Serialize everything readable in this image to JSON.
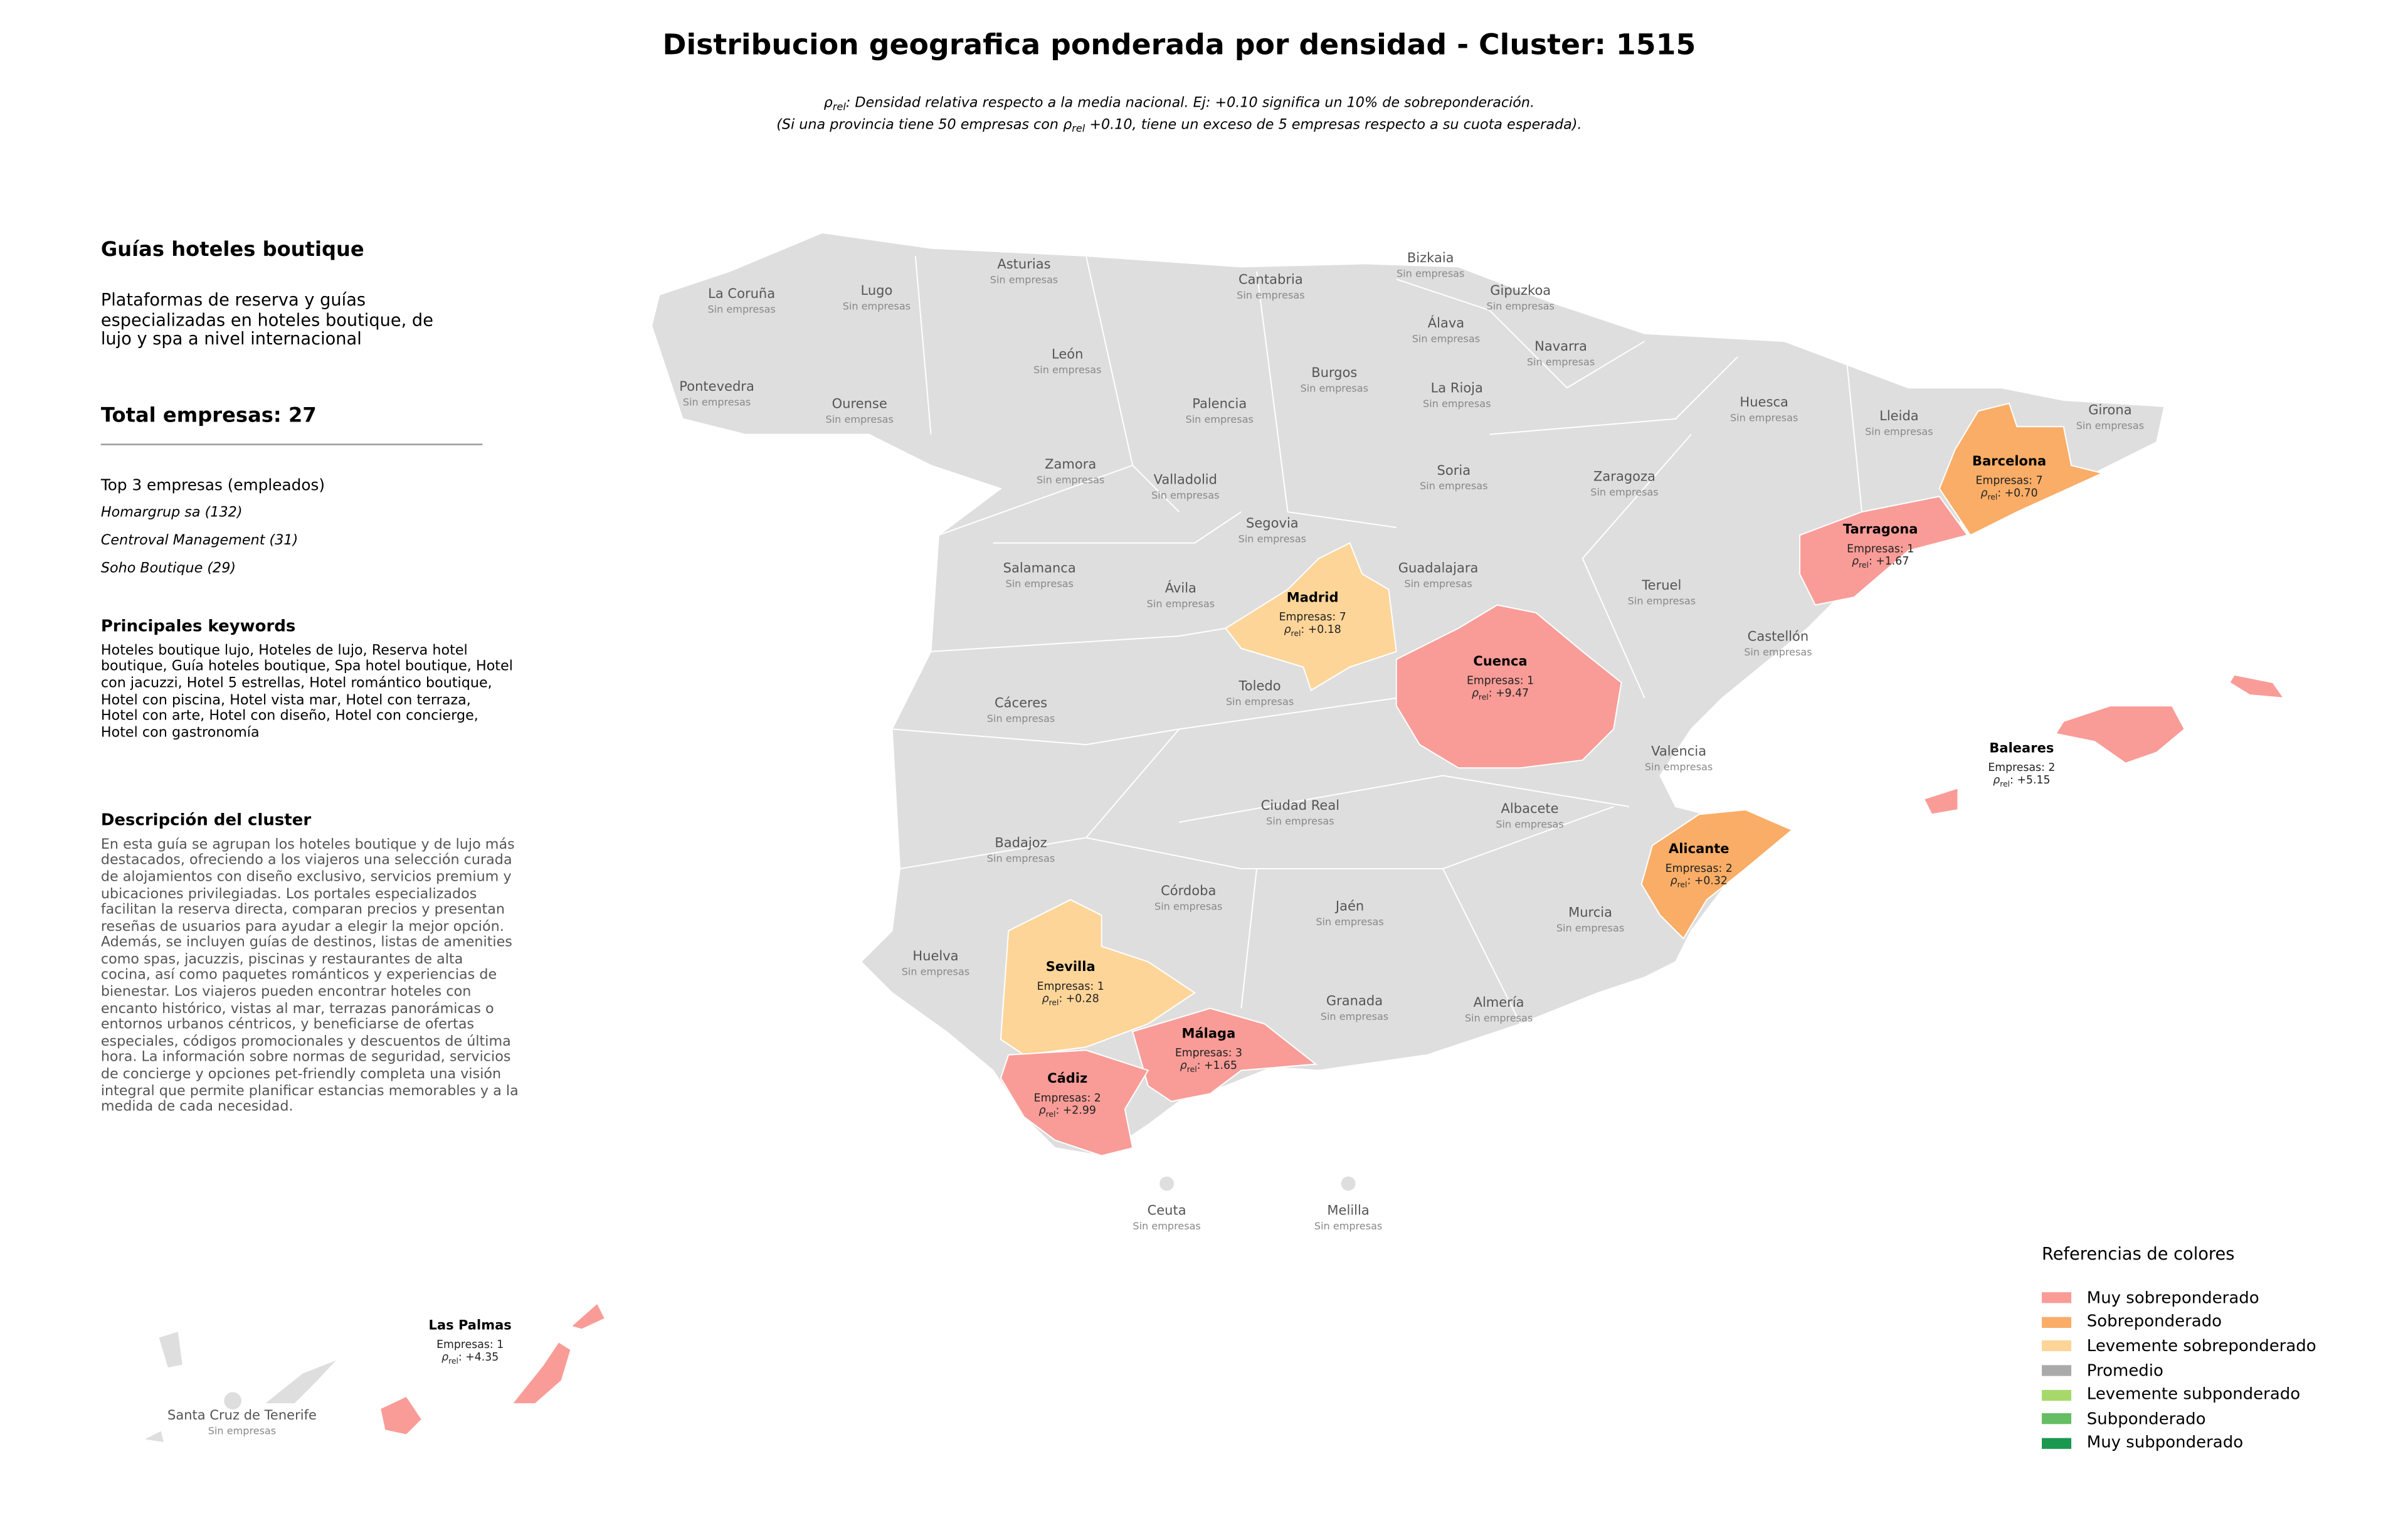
{
  "title": "Distribucion geografica ponderada por densidad - Cluster: 1515",
  "subtitle": {
    "lines": [
      [
        {
          "text": "ρ"
        },
        {
          "text": "rel",
          "sub": true
        },
        {
          "text": ": Densidad relativa respecto a la media nacional. Ej: +0.10 significa un 10% de sobreponderación."
        }
      ],
      [
        {
          "text": "(Si una provincia tiene 50 empresas con "
        },
        {
          "text": "ρ"
        },
        {
          "text": "rel",
          "sub": true
        },
        {
          "text": " +0.10, tiene un exceso de 5 empresas respecto a su cuota esperada)."
        }
      ]
    ]
  },
  "panel": {
    "heading": "Guías hoteles boutique",
    "intro_lines": [
      "Plataformas de reserva y guías",
      "especializadas en hoteles boutique, de",
      "lujo y spa a nivel internacional"
    ],
    "total": "Total empresas: 27",
    "top_heading": "Top 3 empresas (empleados)",
    "top": [
      "Homargrup sa (132)",
      "Centroval Management (31)",
      "Soho Boutique (29)"
    ],
    "keywords_heading": "Principales keywords",
    "keywords_lines": [
      "Hoteles boutique lujo, Hoteles de lujo, Reserva hotel",
      "boutique, Guía hoteles boutique, Spa hotel boutique, Hotel",
      "con jacuzzi, Hotel 5 estrellas, Hotel romántico boutique,",
      "Hotel con piscina, Hotel vista mar, Hotel con terraza,",
      "Hotel con arte, Hotel con diseño, Hotel con concierge,",
      "Hotel con gastronomía"
    ],
    "description_heading": "Descripción del cluster",
    "description_lines": [
      "En esta guía se agrupan los hoteles boutique y de lujo más",
      "destacados, ofreciendo a los viajeros una selección curada",
      "de alojamientos con diseño exclusivo, servicios premium y",
      "ubicaciones privilegiadas. Los portales especializados",
      "facilitan la reserva directa, comparan precios y presentan",
      "reseñas de usuarios para ayudar a elegir la mejor opción.",
      "Además, se incluyen guías de destinos, listas de amenities",
      "como spas, jacuzzis, piscinas y restaurantes de alta",
      "cocina, así como paquetes románticos y experiencias de",
      "bienestar. Los viajeros pueden encontrar hoteles con",
      "encanto histórico, vistas al mar, terrazas panorámicas o",
      "entornos urbanos céntricos, y beneficiarse de ofertas",
      "especiales, códigos promocionales y descuentos de última",
      "hora. La información sobre normas de seguridad, servicios",
      "de concierge y opciones pet-friendly completa una visión",
      "integral que permite planificar estancias memorables y a la",
      "medida de cada necesidad."
    ]
  },
  "map": {
    "rho_symbol": "ρ",
    "rho_subscript": "rel",
    "rho_separator": ": ",
    "provinces": [
      {
        "name": "Asturias",
        "status": "Sin empresas"
      },
      {
        "name": "Cantabria",
        "status": "Sin empresas"
      },
      {
        "name": "Bizkaia",
        "status": "Sin empresas"
      },
      {
        "name": "Gipuzkoa",
        "status": "Sin empresas"
      },
      {
        "name": "La Coruña",
        "status": "Sin empresas"
      },
      {
        "name": "Lugo",
        "status": "Sin empresas"
      },
      {
        "name": "Álava",
        "status": "Sin empresas"
      },
      {
        "name": "Navarra",
        "status": "Sin empresas"
      },
      {
        "name": "León",
        "status": "Sin empresas"
      },
      {
        "name": "Burgos",
        "status": "Sin empresas"
      },
      {
        "name": "Pontevedra",
        "status": "Sin empresas"
      },
      {
        "name": "Ourense",
        "status": "Sin empresas"
      },
      {
        "name": "Palencia",
        "status": "Sin empresas"
      },
      {
        "name": "La Rioja",
        "status": "Sin empresas"
      },
      {
        "name": "Huesca",
        "status": "Sin empresas"
      },
      {
        "name": "Lleida",
        "status": "Sin empresas"
      },
      {
        "name": "Girona",
        "status": "Sin empresas"
      },
      {
        "name": "Zamora",
        "status": "Sin empresas"
      },
      {
        "name": "Soria",
        "status": "Sin empresas"
      },
      {
        "name": "Zaragoza",
        "status": "Sin empresas"
      },
      {
        "name": "Valladolid",
        "status": "Sin empresas"
      },
      {
        "name": "Segovia",
        "status": "Sin empresas"
      },
      {
        "name": "Salamanca",
        "status": "Sin empresas"
      },
      {
        "name": "Guadalajara",
        "status": "Sin empresas"
      },
      {
        "name": "Ávila",
        "status": "Sin empresas"
      },
      {
        "name": "Teruel",
        "status": "Sin empresas"
      },
      {
        "name": "Castellón",
        "status": "Sin empresas"
      },
      {
        "name": "Toledo",
        "status": "Sin empresas"
      },
      {
        "name": "Cáceres",
        "status": "Sin empresas"
      },
      {
        "name": "Valencia",
        "status": "Sin empresas"
      },
      {
        "name": "Ciudad Real",
        "status": "Sin empresas"
      },
      {
        "name": "Albacete",
        "status": "Sin empresas"
      },
      {
        "name": "Badajoz",
        "status": "Sin empresas"
      },
      {
        "name": "Córdoba",
        "status": "Sin empresas"
      },
      {
        "name": "Jaén",
        "status": "Sin empresas"
      },
      {
        "name": "Murcia",
        "status": "Sin empresas"
      },
      {
        "name": "Huelva",
        "status": "Sin empresas"
      },
      {
        "name": "Granada",
        "status": "Sin empresas"
      },
      {
        "name": "Almería",
        "status": "Sin empresas"
      },
      {
        "name": "Ceuta",
        "status": "Sin empresas"
      },
      {
        "name": "Melilla",
        "status": "Sin empresas"
      },
      {
        "name": "Santa Cruz de Tenerife",
        "status": "Sin empresas"
      },
      {
        "name": "Barcelona",
        "count_text": "Empresas: 7",
        "rho": "+0.70",
        "level": 1
      },
      {
        "name": "Tarragona",
        "count_text": "Empresas: 1",
        "rho": "+1.67",
        "level": 0
      },
      {
        "name": "Madrid",
        "count_text": "Empresas: 7",
        "rho": "+0.18",
        "level": 2
      },
      {
        "name": "Cuenca",
        "count_text": "Empresas: 1",
        "rho": "+9.47",
        "level": 0
      },
      {
        "name": "Baleares",
        "count_text": "Empresas: 2",
        "rho": "+5.15",
        "level": 0
      },
      {
        "name": "Alicante",
        "count_text": "Empresas: 2",
        "rho": "+0.32",
        "level": 1
      },
      {
        "name": "Sevilla",
        "count_text": "Empresas: 1",
        "rho": "+0.28",
        "level": 2
      },
      {
        "name": "Málaga",
        "count_text": "Empresas: 3",
        "rho": "+1.65",
        "level": 0
      },
      {
        "name": "Cádiz",
        "count_text": "Empresas: 2",
        "rho": "+2.99",
        "level": 0
      },
      {
        "name": "Las Palmas",
        "count_text": "Empresas: 1",
        "rho": "+4.35",
        "level": 0
      }
    ]
  },
  "legend": {
    "title": "Referencias de colores",
    "items": [
      {
        "name": "Muy sobreponderado",
        "color": "#f99c97"
      },
      {
        "name": "Sobreponderado",
        "color": "#f9ad66"
      },
      {
        "name": "Levemente sobreponderado",
        "color": "#fdd598"
      },
      {
        "name": "Promedio",
        "color": "#aaaaaa"
      },
      {
        "name": "Levemente subponderado",
        "color": "#a6d96a"
      },
      {
        "name": "Subponderado",
        "color": "#66bd63"
      },
      {
        "name": "Muy subponderado",
        "color": "#1a9850"
      }
    ]
  }
}
